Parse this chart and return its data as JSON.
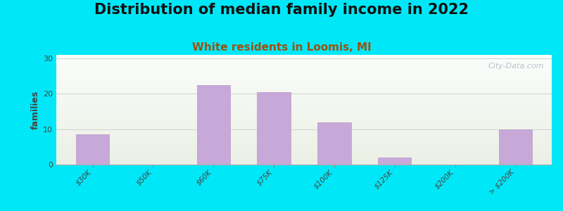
{
  "title": "Distribution of median family income in 2022",
  "subtitle": "White residents in Loomis, MI",
  "categories": [
    "$30K",
    "$50K",
    "$60K",
    "$75K",
    "$100K",
    "$125K",
    "$200K",
    "> $200K"
  ],
  "values": [
    8.5,
    0,
    22.5,
    20.5,
    12,
    2,
    0,
    10
  ],
  "bar_color": "#c8a8d8",
  "bar_edgecolor": "#b898c8",
  "title_fontsize": 15,
  "subtitle_fontsize": 11,
  "subtitle_color": "#a05010",
  "ylabel": "families",
  "ylim": [
    0,
    31
  ],
  "yticks": [
    0,
    10,
    20,
    30
  ],
  "background_outer": "#00e8f8",
  "watermark": "City-Data.com",
  "grid_color": "#d0d0d0"
}
